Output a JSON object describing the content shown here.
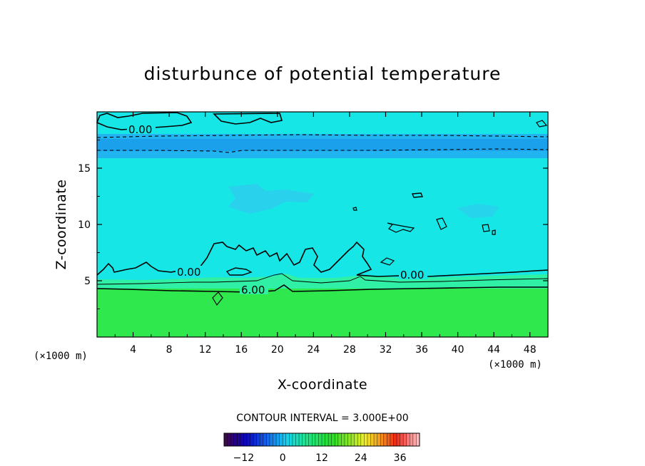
{
  "chart_data": {
    "type": "heatmap",
    "title": "disturbunce of potential temperature",
    "xlabel": "X-coordinate",
    "ylabel": "Z-coordinate",
    "xlim": [
      0,
      50
    ],
    "ylim": [
      0,
      20
    ],
    "x_ticks": [
      4,
      8,
      12,
      16,
      20,
      24,
      28,
      32,
      36,
      40,
      44,
      48
    ],
    "y_ticks": [
      5,
      10,
      15
    ],
    "x_unit_label": "(×1000 m)",
    "y_unit_label": "(×1000 m)",
    "contour_interval_text": "CONTOUR INTERVAL = 3.000E+00",
    "contour_labels": [
      "0.00",
      "0.00",
      "0.00",
      "6.00"
    ],
    "colorbar": {
      "range": [
        -18,
        42
      ],
      "ticks": [
        -12,
        0,
        12,
        24,
        36
      ]
    },
    "layers": [
      {
        "z_range": [
          0,
          4.3
        ],
        "value": 9,
        "color": "#2fe84e"
      },
      {
        "z_range": [
          4.3,
          5.0
        ],
        "value": 4.5,
        "color": "#2ff0a4"
      },
      {
        "z_range": [
          5.0,
          16.0
        ],
        "value": 1.5,
        "color": "#17e6e6"
      },
      {
        "z_range": [
          16.0,
          17.8
        ],
        "value": -3,
        "color": "#22b4f0"
      },
      {
        "z_range": [
          17.8,
          20.0
        ],
        "value": 1.5,
        "color": "#17e6e6"
      }
    ]
  }
}
